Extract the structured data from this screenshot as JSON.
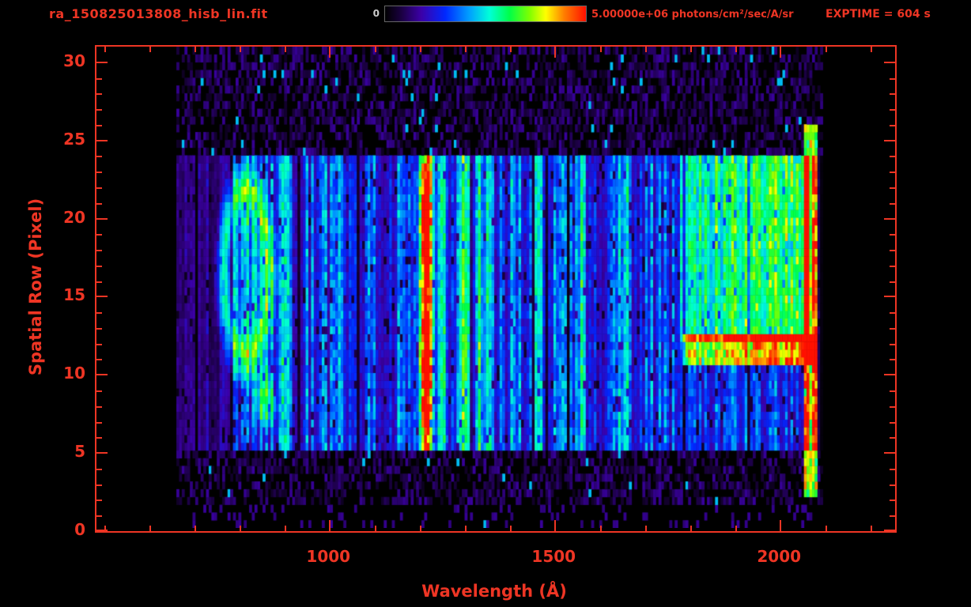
{
  "header": {
    "title": "ra_150825013808_hisb_lin.fit",
    "exptime": "EXPTIME = 604 s",
    "colorbar": {
      "min_label": "0",
      "max_label": "5.00000e+06 photons/cm²/sec/A/sr"
    }
  },
  "axes": {
    "xlabel": "Wavelength (Å)",
    "ylabel": "Spatial Row (Pixel)"
  },
  "colors": {
    "axis_red": "#ee3524",
    "background": "#000000",
    "colorbar_min_label": "#cccccc"
  },
  "chart_data": {
    "type": "heatmap",
    "title": "ra_150825013808_hisb_lin.fit",
    "xlabel": "Wavelength (Å)",
    "ylabel": "Spatial Row (Pixel)",
    "xlim": [
      482,
      2254
    ],
    "ylim": [
      0,
      31
    ],
    "xticks": [
      1000,
      1500,
      2000
    ],
    "xminor_step": 100,
    "yticks": [
      0,
      5,
      10,
      15,
      20,
      25,
      30
    ],
    "yminor_step": 1,
    "exposure_seconds": 604,
    "intensity_range": [
      0,
      5000000
    ],
    "intensity_units": "photons/cm²/sec/A/sr",
    "grid": false,
    "data_extent": {
      "wl_min": 660,
      "wl_max": 2100,
      "row_min": 0,
      "row_max": 31
    },
    "slit_rows": [
      5,
      24
    ],
    "colormap_stops": [
      [
        0.0,
        "#000000"
      ],
      [
        0.08,
        "#1a0040"
      ],
      [
        0.18,
        "#3c00a8"
      ],
      [
        0.3,
        "#0028ff"
      ],
      [
        0.42,
        "#00a0ff"
      ],
      [
        0.52,
        "#00ffd8"
      ],
      [
        0.62,
        "#00ff48"
      ],
      [
        0.72,
        "#80ff00"
      ],
      [
        0.8,
        "#ffff00"
      ],
      [
        0.89,
        "#ff8000"
      ],
      [
        1.0,
        "#ff1000"
      ]
    ],
    "features": [
      {
        "kind": "line",
        "wl": 1216,
        "sigma": 9,
        "rows": [
          5,
          24
        ],
        "amp": 0.78
      },
      {
        "kind": "line",
        "wl": 1249,
        "sigma": 6,
        "rows": [
          5,
          24
        ],
        "amp": 0.3
      },
      {
        "kind": "line",
        "wl": 903,
        "sigma": 7,
        "rows": [
          5,
          24
        ],
        "amp": 0.26
      },
      {
        "kind": "line",
        "wl": 1026,
        "sigma": 6,
        "rows": [
          5,
          24
        ],
        "amp": 0.18
      },
      {
        "kind": "line",
        "wl": 1304,
        "sigma": 9,
        "rows": [
          5,
          24
        ],
        "amp": 0.28
      },
      {
        "kind": "line",
        "wl": 1335,
        "sigma": 6,
        "rows": [
          5,
          24
        ],
        "amp": 0.22
      },
      {
        "kind": "line",
        "wl": 1356,
        "sigma": 6,
        "rows": [
          5,
          24
        ],
        "amp": 0.18
      },
      {
        "kind": "line",
        "wl": 1412,
        "sigma": 7,
        "rows": [
          5,
          24
        ],
        "amp": 0.16
      },
      {
        "kind": "line",
        "wl": 1467,
        "sigma": 7,
        "rows": [
          5,
          24
        ],
        "amp": 0.18
      },
      {
        "kind": "line",
        "wl": 1561,
        "sigma": 8,
        "rows": [
          5,
          24
        ],
        "amp": 0.16
      },
      {
        "kind": "line",
        "wl": 1657,
        "sigma": 8,
        "rows": [
          5,
          24
        ],
        "amp": 0.18
      },
      {
        "kind": "ring",
        "center": [
          815,
          16.5
        ],
        "rx": 58,
        "ry": 6.2,
        "amp": 0.4,
        "inner": 0.12
      },
      {
        "kind": "blob",
        "center": [
          858,
          8.5
        ],
        "rx": 30,
        "ry": 2.4,
        "amp": 0.32
      },
      {
        "kind": "band",
        "wl": [
          1780,
          2070
        ],
        "rows": [
          12,
          24
        ],
        "amp": 0.38,
        "ramp": true
      },
      {
        "kind": "band",
        "wl": [
          1790,
          2088
        ],
        "rows": [
          10.5,
          12.6
        ],
        "amp": 0.72,
        "ramp": true
      },
      {
        "kind": "band",
        "wl": [
          2060,
          2090
        ],
        "rows": [
          2,
          26
        ],
        "amp": 0.66,
        "ramp": false
      }
    ]
  }
}
